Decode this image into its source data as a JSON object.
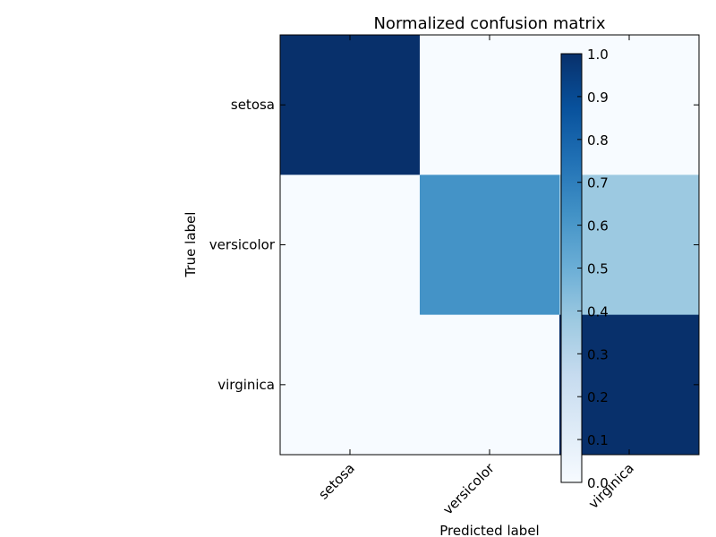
{
  "chart_data": {
    "type": "heatmap",
    "title": "Normalized confusion matrix",
    "xlabel": "Predicted label",
    "ylabel": "True label",
    "x_categories": [
      "setosa",
      "versicolor",
      "virginica"
    ],
    "y_categories": [
      "setosa",
      "versicolor",
      "virginica"
    ],
    "values": [
      [
        1.0,
        0.0,
        0.0
      ],
      [
        0.0,
        0.62,
        0.38
      ],
      [
        0.0,
        0.0,
        1.0
      ]
    ],
    "colormap": "Blues",
    "colormap_stops": [
      "#f7fbff",
      "#deebf7",
      "#c6dbef",
      "#9ecae1",
      "#6baed6",
      "#4292c6",
      "#2171b5",
      "#08519c",
      "#08306b"
    ],
    "colorbar": {
      "range": [
        0.0,
        1.0
      ],
      "ticks": [
        "0.0",
        "0.1",
        "0.2",
        "0.3",
        "0.4",
        "0.5",
        "0.6",
        "0.7",
        "0.8",
        "0.9",
        "1.0"
      ]
    },
    "grid": false
  }
}
